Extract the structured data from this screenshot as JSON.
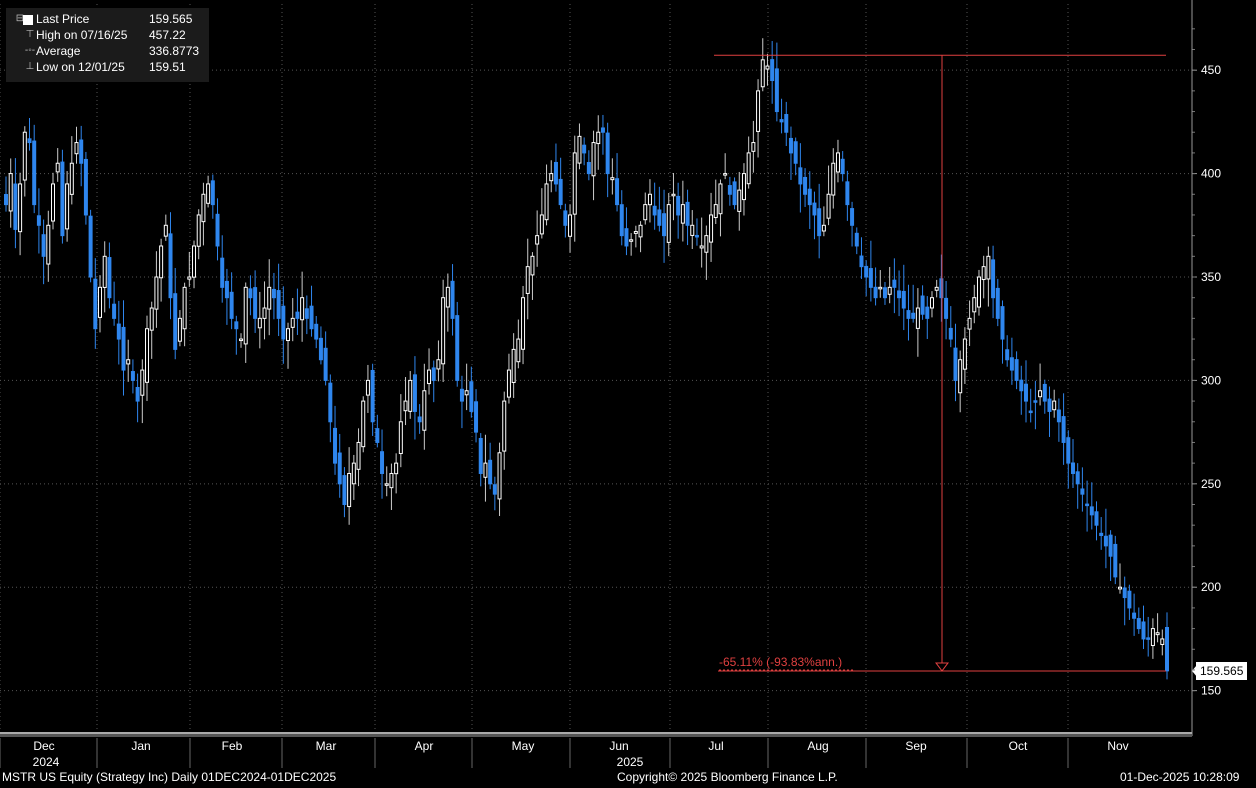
{
  "legend": {
    "last_price_label": "Last Price",
    "last_price_value": "159.565",
    "high_label": "High on 07/16/25",
    "high_value": "457.22",
    "average_label": "Average",
    "average_value": "336.8773",
    "low_label": "Low on 12/01/25",
    "low_value": "159.51"
  },
  "footer": {
    "security": "MSTR US Equity (Strategy Inc) Daily 01DEC2024-01DEC2025",
    "copyright": "Copyright© 2025 Bloomberg Finance L.P.",
    "timestamp": "01-Dec-2025 10:28:09"
  },
  "price_tag": "159.565",
  "annotation": "-65.11% (-93.83%ann.)",
  "colors": {
    "up": "#ffffff",
    "down": "#2f86ee",
    "annotation": "#e04040",
    "grid": "#555555"
  },
  "chart_data": {
    "type": "candlestick",
    "y_ticks": [
      150,
      200,
      250,
      300,
      350,
      400,
      450
    ],
    "ylim": [
      130,
      482
    ],
    "x_months": [
      "Dec",
      "Jan",
      "Feb",
      "Mar",
      "Apr",
      "May",
      "Jun",
      "Jul",
      "Aug",
      "Sep",
      "Oct",
      "Nov"
    ],
    "x_years": [
      "2024",
      "2025"
    ],
    "high_level": 457.22,
    "low_level": 159.51,
    "last": 159.565,
    "closes": [
      385,
      400,
      373,
      395,
      420,
      415,
      385,
      375,
      360,
      375,
      395,
      405,
      370,
      395,
      405,
      415,
      405,
      380,
      350,
      325,
      345,
      360,
      340,
      330,
      320,
      305,
      310,
      300,
      290,
      305,
      325,
      335,
      350,
      365,
      375,
      340,
      315,
      330,
      345,
      350,
      365,
      380,
      390,
      395,
      385,
      365,
      345,
      340,
      330,
      325,
      320,
      345,
      340,
      330,
      330,
      335,
      345,
      340,
      330,
      320,
      325,
      330,
      330,
      340,
      330,
      325,
      320,
      310,
      300,
      280,
      260,
      250,
      240,
      255,
      260,
      270,
      290,
      300,
      280,
      270,
      255,
      250,
      255,
      260,
      280,
      290,
      300,
      285,
      280,
      295,
      305,
      300,
      310,
      340,
      345,
      330,
      300,
      290,
      295,
      285,
      275,
      255,
      260,
      250,
      245,
      265,
      290,
      305,
      315,
      320,
      340,
      355,
      360,
      370,
      380,
      395,
      400,
      395,
      385,
      375,
      380,
      410,
      418,
      410,
      400,
      415,
      420,
      420,
      400,
      398,
      385,
      370,
      365,
      368,
      372,
      375,
      385,
      390,
      380,
      375,
      370,
      385,
      390,
      380,
      385,
      375,
      375,
      370,
      365,
      370,
      380,
      385,
      395,
      400,
      390,
      385,
      392,
      400,
      410,
      415,
      440,
      455,
      452,
      445,
      430,
      425,
      420,
      410,
      405,
      395,
      390,
      385,
      380,
      370,
      375,
      390,
      405,
      410,
      400,
      385,
      375,
      365,
      355,
      350,
      345,
      340,
      345,
      340,
      345,
      345,
      340,
      335,
      330,
      330,
      335,
      332,
      330,
      340,
      345,
      340,
      330,
      320,
      300,
      310,
      320,
      330,
      340,
      350,
      355,
      360,
      340,
      330,
      320,
      310,
      305,
      300,
      295,
      290,
      285,
      290,
      295,
      290,
      285,
      290,
      280,
      270,
      260,
      255,
      250,
      245,
      240,
      235,
      230,
      225,
      220,
      215,
      205,
      200,
      195,
      190,
      185,
      180,
      175,
      175,
      180,
      178,
      175,
      159.565
    ]
  }
}
